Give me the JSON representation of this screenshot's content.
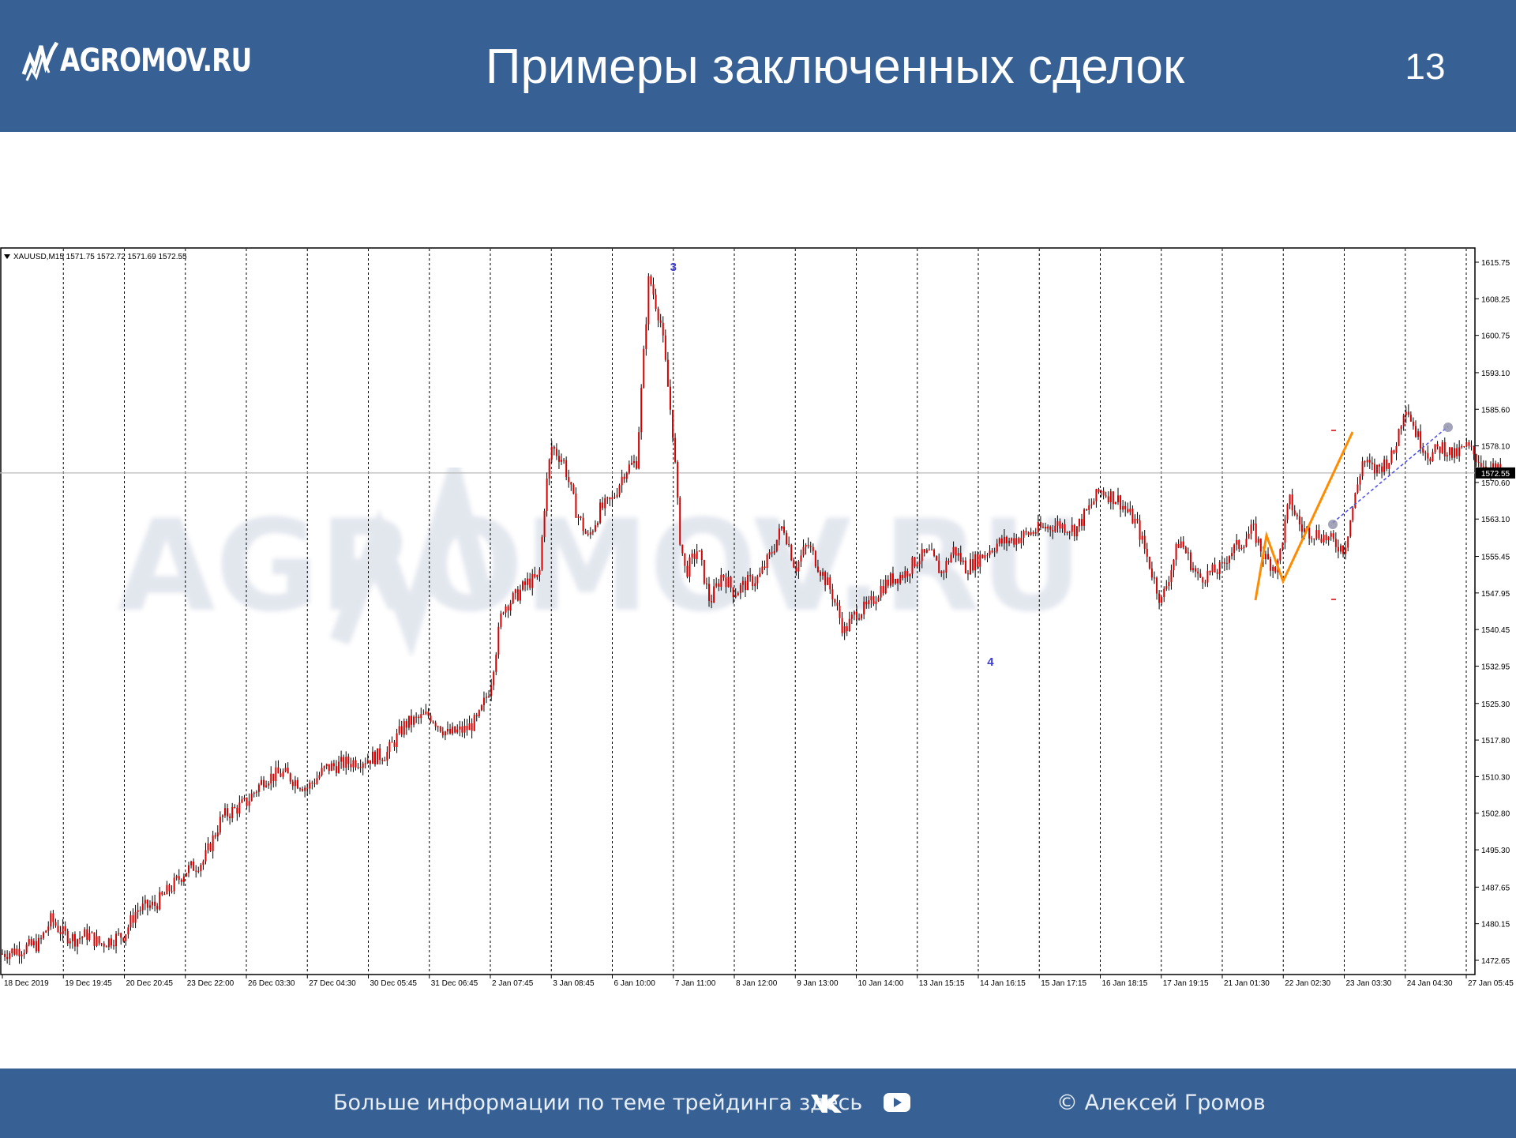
{
  "header": {
    "logo_text": "AGROMOV.RU",
    "title": "Примеры заключенных сделок",
    "page_number": "13"
  },
  "footer": {
    "info_text": "Больше информации по теме трейдинга здесь",
    "copyright": "© Алексей Громов",
    "icons": [
      "vk-icon",
      "youtube-icon"
    ]
  },
  "colors": {
    "header_bg": "#376195",
    "candles": "#d40000",
    "wicks": "#000000",
    "wave_labels": "#3b3bd6",
    "orange_line": "#ff8c00",
    "dotted_line": "#4a4af0"
  },
  "chart_data": {
    "type": "line",
    "header_text": "XAUUSD,M15  1571.75 1572.72 1571.69 1572.55",
    "symbol": "XAUUSD",
    "timeframe": "M15",
    "ohlc": {
      "open": 1571.75,
      "high": 1572.72,
      "low": 1571.69,
      "close": 1572.55
    },
    "current_price_label": "1572.55",
    "y_ticks": [
      "1615.75",
      "1608.25",
      "1600.75",
      "1593.10",
      "1585.60",
      "1578.10",
      "1570.60",
      "1563.10",
      "1555.45",
      "1547.95",
      "1540.45",
      "1532.95",
      "1525.30",
      "1517.80",
      "1510.30",
      "1502.80",
      "1495.30",
      "1487.65",
      "1480.15",
      "1472.65"
    ],
    "ylim": [
      1469.85,
      1618.5
    ],
    "x_ticks": [
      "18 Dec 2019",
      "19 Dec 19:45",
      "20 Dec 20:45",
      "23 Dec 22:00",
      "26 Dec 03:30",
      "27 Dec 04:30",
      "30 Dec 05:45",
      "31 Dec 06:45",
      "2 Jan 07:45",
      "3 Jan 08:45",
      "6 Jan 10:00",
      "7 Jan 11:00",
      "8 Jan 12:00",
      "9 Jan 13:00",
      "10 Jan 14:00",
      "13 Jan 15:15",
      "14 Jan 16:15",
      "15 Jan 17:15",
      "16 Jan 18:15",
      "17 Jan 19:15",
      "21 Jan 01:30",
      "22 Jan 02:30",
      "23 Jan 03:30",
      "24 Jan 04:30",
      "27 Jan 05:45"
    ],
    "series": [
      {
        "x": [
          0,
          0.3,
          0.6,
          0.8,
          1.0,
          1.2,
          1.4,
          1.6,
          1.8,
          2.0,
          2.2,
          2.5,
          2.8,
          3.0,
          3.3,
          3.6,
          4.0,
          4.3,
          4.6,
          5.0,
          5.3,
          5.6,
          6.0,
          6.3,
          6.6,
          7.0,
          7.3,
          7.6,
          7.8,
          8.0,
          8.2,
          8.4,
          8.6,
          8.8,
          8.9,
          9.0,
          9.2,
          9.4,
          9.6,
          9.8,
          10.0,
          10.2,
          10.4,
          10.6,
          10.8,
          11.0,
          11.1,
          11.2,
          11.4,
          11.6,
          11.8,
          12.0,
          12.2,
          12.4,
          12.6,
          12.8,
          13.0,
          13.2,
          13.4,
          13.6,
          13.8,
          14.0,
          14.2,
          14.4,
          14.6,
          14.8,
          15.0,
          15.2,
          15.4,
          15.6,
          15.8,
          16.0,
          16.3,
          16.6,
          17.0,
          17.3,
          17.6,
          18.0,
          18.3,
          18.6,
          19.0,
          19.3,
          19.6,
          20.0,
          20.1,
          20.3,
          20.5,
          20.7,
          20.9,
          21.1,
          21.3,
          21.6,
          22.0,
          22.3,
          22.5,
          22.8,
          23.0,
          23.2,
          23.4,
          23.6,
          23.8,
          24.0,
          24.3,
          24.6
        ],
        "y": [
          1474,
          1475,
          1476,
          1481,
          1478,
          1477,
          1478,
          1476,
          1477,
          1478,
          1483,
          1484,
          1488,
          1491,
          1493,
          1502,
          1505,
          1510,
          1511,
          1508,
          1512,
          1513,
          1514,
          1515,
          1521,
          1523,
          1519,
          1520,
          1522,
          1529,
          1545,
          1547,
          1550,
          1551,
          1568,
          1578,
          1575,
          1565,
          1559,
          1565,
          1567,
          1573,
          1575,
          1613,
          1603,
          1580,
          1560,
          1552,
          1557,
          1546,
          1552,
          1548,
          1550,
          1551,
          1556,
          1562,
          1553,
          1558,
          1553,
          1548,
          1540,
          1544,
          1545,
          1549,
          1551,
          1552,
          1555,
          1556,
          1552,
          1557,
          1553,
          1555,
          1558,
          1559,
          1561,
          1562,
          1561,
          1569,
          1567,
          1562,
          1546,
          1559,
          1551,
          1553,
          1556,
          1558,
          1561,
          1555,
          1553,
          1567,
          1561,
          1560,
          1557,
          1575,
          1573,
          1576,
          1587,
          1580,
          1576,
          1578,
          1576,
          1578,
          1574,
          1572.55
        ]
      }
    ],
    "annotations": [
      {
        "text": "3",
        "x": 11.0,
        "y": 1614
      },
      {
        "text": "4",
        "x": 16.2,
        "y": 1533
      }
    ],
    "grid": true,
    "legend": "none"
  }
}
